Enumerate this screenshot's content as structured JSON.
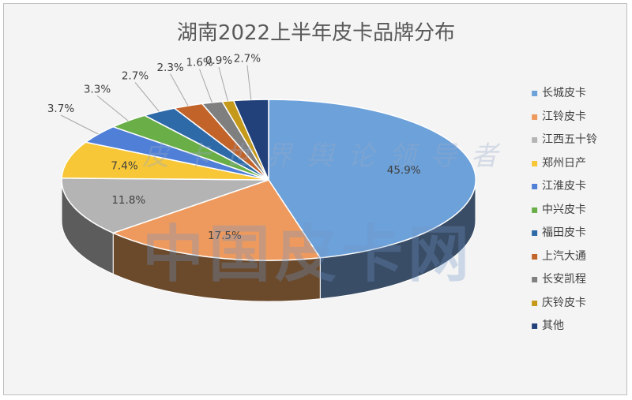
{
  "chart_data": {
    "type": "pie",
    "title": "湖南2022上半年皮卡品牌分布",
    "slices": [
      {
        "label": "长城皮卡",
        "value": 45.9,
        "value_text": "45.9%",
        "color": "#6da1d9",
        "side_color": "#3a4d66"
      },
      {
        "label": "江铃皮卡",
        "value": 17.5,
        "value_text": "17.5%",
        "color": "#ee9a5e",
        "side_color": "#6b4a2c"
      },
      {
        "label": "江西五十铃",
        "value": 11.8,
        "value_text": "11.8%",
        "color": "#b4b4b4",
        "side_color": "#5c5c5c"
      },
      {
        "label": "郑州日产",
        "value": 7.4,
        "value_text": "7.4%",
        "color": "#f7c737",
        "side_color": "#7a6318"
      },
      {
        "label": "江淮皮卡",
        "value": 3.7,
        "value_text": "3.7%",
        "color": "#4f7fd6",
        "side_color": "#2a4170"
      },
      {
        "label": "中兴皮卡",
        "value": 3.3,
        "value_text": "3.3%",
        "color": "#6aae48",
        "side_color": "#36592a"
      },
      {
        "label": "福田皮卡",
        "value": 2.7,
        "value_text": "2.7%",
        "color": "#2e6aa8",
        "side_color": "#1a3556"
      },
      {
        "label": "上汽大通",
        "value": 2.3,
        "value_text": "2.3%",
        "color": "#c2642a",
        "side_color": "#5e3216"
      },
      {
        "label": "长安凯程",
        "value": 1.6,
        "value_text": "1.6%",
        "color": "#7f7f7f",
        "side_color": "#3f3f3f"
      },
      {
        "label": "庆铃皮卡",
        "value": 0.9,
        "value_text": "0.9%",
        "color": "#c59a1a",
        "side_color": "#614c0d"
      },
      {
        "label": "其他",
        "value": 2.7,
        "value_text": "2.7%",
        "color": "#22407a",
        "side_color": "#121f3c"
      }
    ],
    "legend_position": "right"
  },
  "watermark": {
    "top_text": "皮卡世界舆论领导者",
    "main_text": "中国皮卡网"
  }
}
